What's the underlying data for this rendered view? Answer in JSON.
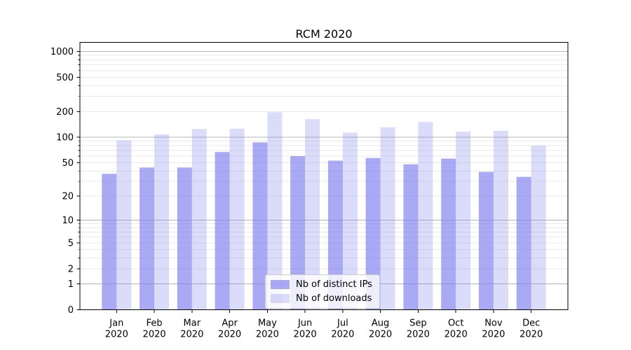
{
  "title": "RCM 2020",
  "chart_data": {
    "type": "bar",
    "title": "RCM 2020",
    "categories": [
      "Jan",
      "Feb",
      "Mar",
      "Apr",
      "May",
      "Jun",
      "Jul",
      "Aug",
      "Sep",
      "Oct",
      "Nov",
      "Dec"
    ],
    "x_year_label": "2020",
    "series": [
      {
        "name": "Nb of distinct IPs",
        "values": [
          37,
          44,
          44,
          67,
          87,
          60,
          53,
          57,
          48,
          56,
          39,
          34
        ],
        "color": "#7f7fee",
        "opacity": 0.67
      },
      {
        "name": "Nb of downloads",
        "values": [
          92,
          108,
          125,
          126,
          196,
          163,
          113,
          131,
          151,
          116,
          119,
          80
        ],
        "color": "#7f7fee",
        "opacity": 0.28
      }
    ],
    "yscale": "log1p",
    "yticks": [
      0,
      1,
      2,
      5,
      10,
      20,
      50,
      100,
      200,
      500,
      1000
    ],
    "ylim": [
      0,
      1276
    ],
    "grid": true,
    "legend_position": "lower center"
  },
  "colors": {
    "bar_base": "#7f7fee",
    "bar_dark_rendered": "#a9a9f4",
    "bar_light_rendered": "#dbdbfa",
    "grid_major": "#b5b5b5",
    "grid_minor": "#e9e9e9",
    "axis": "#000000",
    "tick_label": "#000000",
    "background": "#ffffff",
    "legend_border": "#cccccc"
  }
}
